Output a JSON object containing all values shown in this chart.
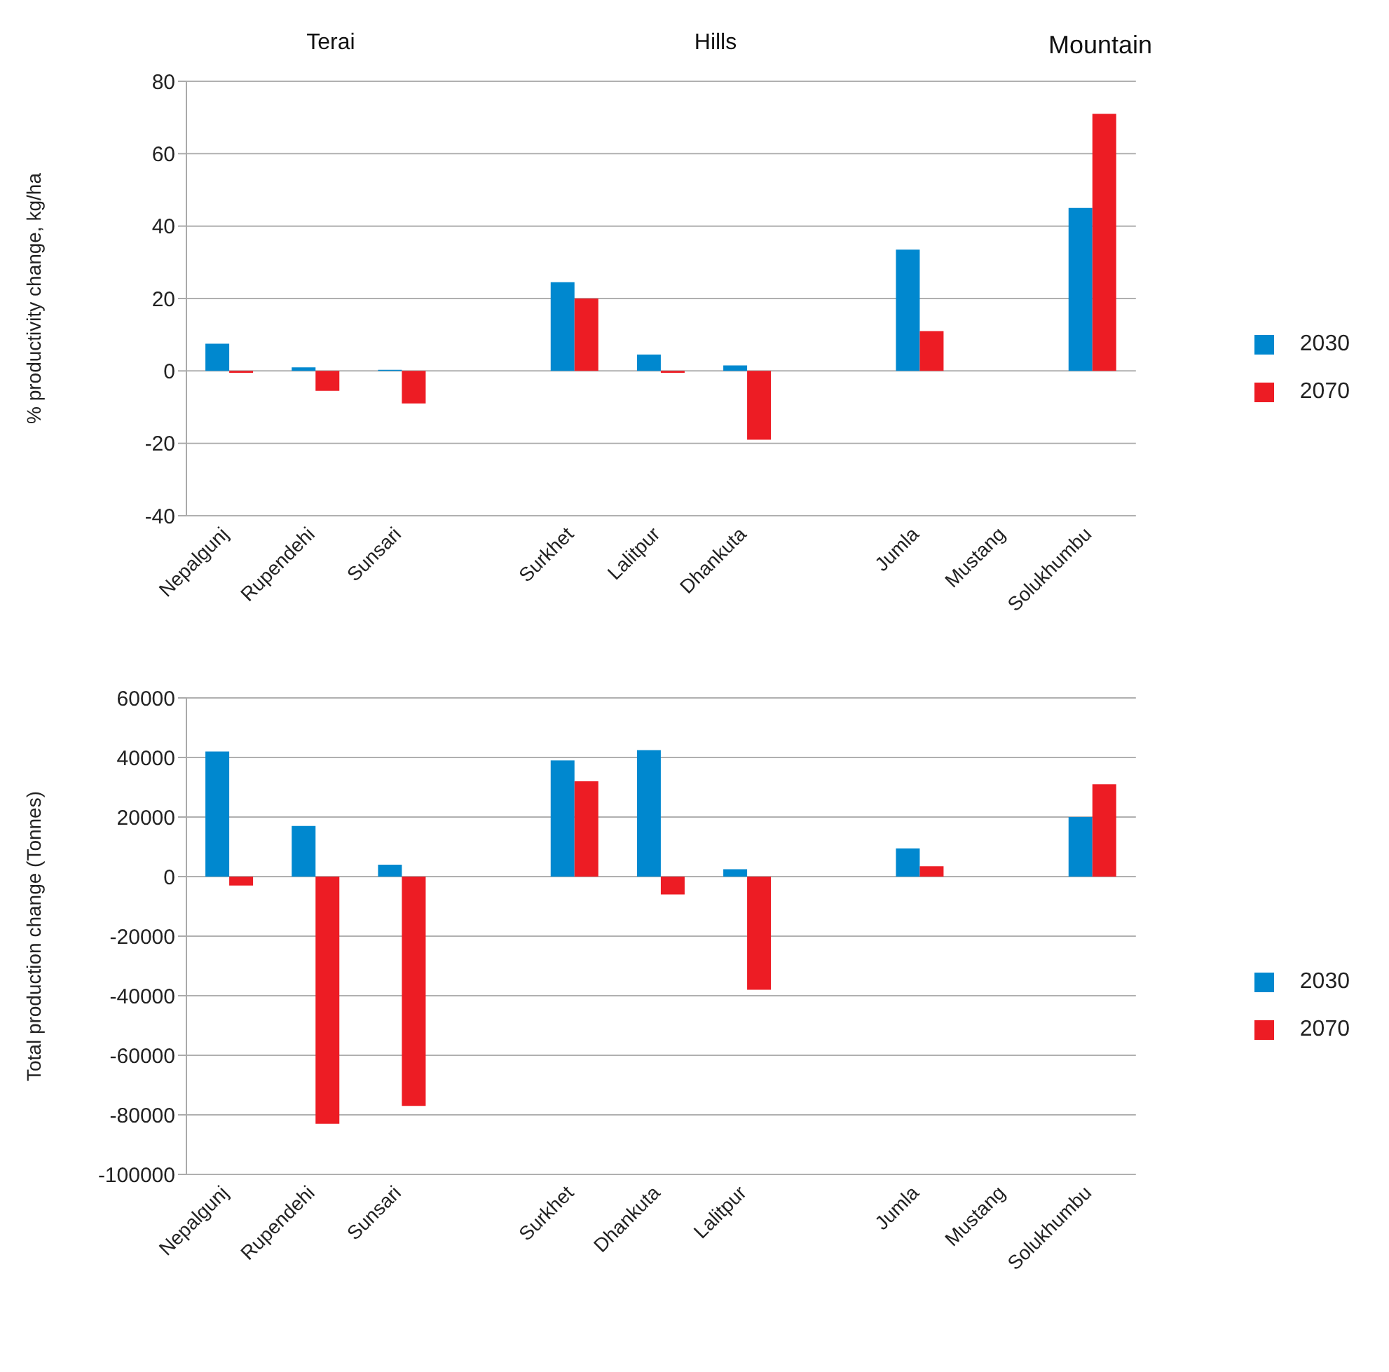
{
  "chart_data": [
    {
      "type": "bar",
      "ylabel": "% productivity change, kg/ha",
      "categories": [
        "Nepalgunj",
        "Rupendehi",
        "Sunsari",
        null,
        "Surkhet",
        "Lalitpur",
        "Dhankuta",
        null,
        "Jumla",
        "Mustang",
        "Solukhumbu"
      ],
      "series": [
        {
          "name": "2030",
          "color": "#0088cf",
          "values": [
            7.5,
            1,
            0.3,
            null,
            24.5,
            4.5,
            1.5,
            null,
            33.5,
            null,
            45
          ]
        },
        {
          "name": "2070",
          "color": "#ed1c24",
          "values": [
            -0.5,
            -5.5,
            -9,
            null,
            20,
            -0.5,
            -19,
            null,
            11,
            null,
            71
          ]
        }
      ],
      "ylim": [
        -40,
        80
      ],
      "yticks": [
        -40,
        -20,
        0,
        20,
        40,
        60,
        80
      ],
      "grid": "y",
      "legend": "right",
      "annotations": [
        "Terai",
        "Hills",
        "Mountain"
      ]
    },
    {
      "type": "bar",
      "ylabel": "Total production change (Tonnes)",
      "categories": [
        "Nepalgunj",
        "Rupendehi",
        "Sunsari",
        null,
        "Surkhet",
        "Dhankuta",
        "Lalitpur",
        null,
        "Jumla",
        "Mustang",
        "Solukhumbu"
      ],
      "series": [
        {
          "name": "2030",
          "color": "#0088cf",
          "values": [
            42000,
            17000,
            4000,
            null,
            39000,
            42500,
            2500,
            null,
            9500,
            null,
            20000
          ]
        },
        {
          "name": "2070",
          "color": "#ed1c24",
          "values": [
            -3000,
            -83000,
            -77000,
            null,
            32000,
            -6000,
            -38000,
            null,
            3500,
            null,
            31000
          ]
        }
      ],
      "ylim": [
        -100000,
        60000
      ],
      "yticks": [
        -100000,
        -80000,
        -60000,
        -40000,
        -20000,
        0,
        20000,
        40000,
        60000
      ],
      "grid": "y",
      "legend": "right"
    }
  ]
}
